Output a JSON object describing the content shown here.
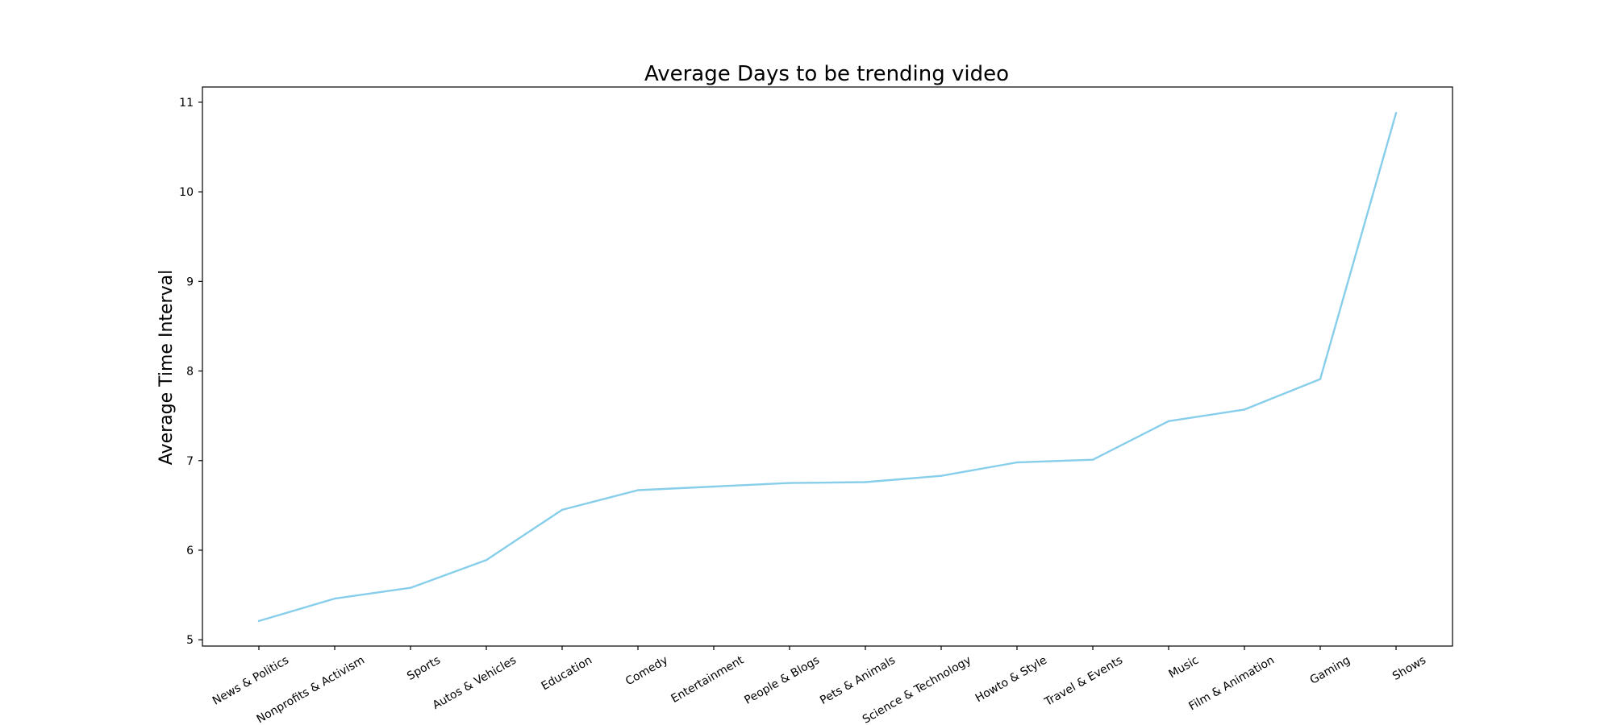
{
  "chart_data": {
    "type": "line",
    "title": "Average Days to be trending video",
    "xlabel": "",
    "ylabel": "Average Time Interval",
    "categories": [
      "News & Politics",
      "Nonprofits & Activism",
      "Sports",
      "Autos & Vehicles",
      "Education",
      "Comedy",
      "Entertainment",
      "People & Blogs",
      "Pets & Animals",
      "Science & Technology",
      "Howto & Style",
      "Travel & Events",
      "Music",
      "Film & Animation",
      "Gaming",
      "Shows"
    ],
    "series": [
      {
        "values": [
          5.21,
          5.46,
          5.58,
          5.89,
          6.45,
          6.67,
          6.71,
          6.75,
          6.76,
          6.83,
          6.98,
          7.01,
          7.44,
          7.57,
          7.91,
          10.88
        ],
        "color": "#87ceeb"
      }
    ],
    "ylim": [
      4.93,
      11.17
    ],
    "yticks": [
      5,
      6,
      7,
      8,
      9,
      10,
      11
    ],
    "grid": false,
    "legend": "none"
  }
}
